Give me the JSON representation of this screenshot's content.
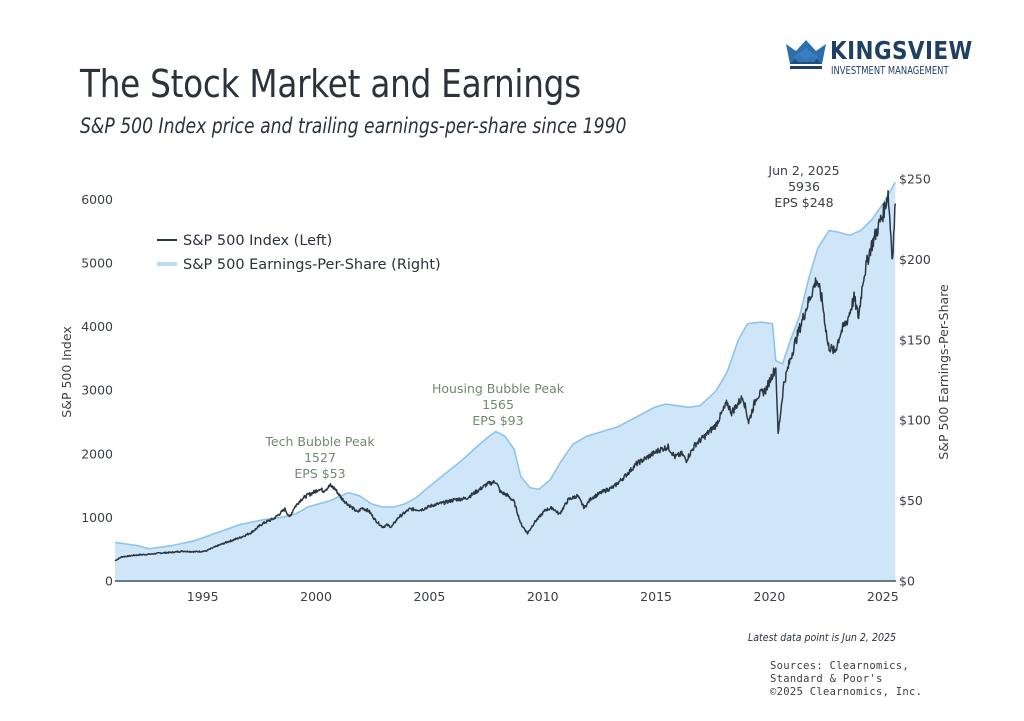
{
  "header": {
    "title": "The Stock Market and Earnings",
    "subtitle": "S&P 500 Index price and trailing earnings-per-share since 1990"
  },
  "brand": {
    "name": "KINGSVIEW",
    "tagline": "INVESTMENT MANAGEMENT",
    "icon": "crown-logo-icon",
    "color": "#1f3f63"
  },
  "footer": {
    "latest": "Latest data point is Jun 2, 2025",
    "sources": [
      "Sources: Clearnomics,",
      "Standard & Poor's",
      "©2025 Clearnomics, Inc."
    ]
  },
  "chart_data": {
    "type": "line",
    "title": "The Stock Market and Earnings",
    "xlabel": "",
    "ylabel": "S&P 500 Index",
    "y2label": "S&P 500 Earnings-Per-Share",
    "xlim": [
      1991,
      2025.45
    ],
    "ylim": [
      0,
      6300
    ],
    "y2lim": [
      0,
      250
    ],
    "grid": false,
    "legend_position": "top-left",
    "x_ticks": [
      "1995",
      "2000",
      "2005",
      "2010",
      "2015",
      "2020",
      "2025"
    ],
    "y_ticks": [
      "0",
      "1000",
      "2000",
      "3000",
      "4000",
      "5000",
      "6000"
    ],
    "y2_ticks": [
      "$0",
      "$50",
      "$100",
      "$150",
      "$200",
      "$250"
    ],
    "colors": {
      "index_line": "#2c3744",
      "eps_fill": "#cfe6f8",
      "eps_line": "#8ec4ec",
      "annotation": "#6f8a6e"
    },
    "series": [
      {
        "name": "S&P 500 Index (Left)",
        "axis": "left",
        "style": "line",
        "x": [
          1991.0,
          1991.3,
          1992.0,
          1992.5,
          1993.0,
          1993.5,
          1994.0,
          1994.5,
          1995.0,
          1995.5,
          1996.0,
          1996.5,
          1997.0,
          1997.5,
          1997.8,
          1998.0,
          1998.5,
          1998.7,
          1998.9,
          1999.2,
          1999.5,
          1999.8,
          2000.0,
          2000.2,
          2000.5,
          2000.7,
          2001.0,
          2001.3,
          2001.7,
          2001.9,
          2002.2,
          2002.5,
          2002.8,
          2003.0,
          2003.2,
          2003.5,
          2004.0,
          2004.5,
          2005.0,
          2005.5,
          2006.0,
          2006.5,
          2007.0,
          2007.4,
          2007.8,
          2008.0,
          2008.3,
          2008.6,
          2008.9,
          2009.2,
          2009.5,
          2010.0,
          2010.3,
          2010.6,
          2011.0,
          2011.4,
          2011.7,
          2012.0,
          2012.5,
          2013.0,
          2013.5,
          2014.0,
          2014.5,
          2015.0,
          2015.4,
          2015.7,
          2016.0,
          2016.2,
          2016.6,
          2017.0,
          2017.5,
          2018.0,
          2018.2,
          2018.7,
          2018.95,
          2019.3,
          2019.7,
          2020.0,
          2020.15,
          2020.25,
          2020.5,
          2020.8,
          2021.0,
          2021.5,
          2021.95,
          2022.2,
          2022.45,
          2022.75,
          2023.0,
          2023.3,
          2023.6,
          2023.8,
          2024.0,
          2024.3,
          2024.6,
          2024.9,
          2025.1,
          2025.3,
          2025.42
        ],
        "values": [
          320,
          380,
          410,
          420,
          440,
          450,
          470,
          460,
          470,
          550,
          620,
          680,
          760,
          900,
          950,
          980,
          1130,
          1000,
          1150,
          1280,
          1350,
          1400,
          1450,
          1420,
          1500,
          1450,
          1300,
          1200,
          1080,
          1150,
          1100,
          950,
          850,
          880,
          850,
          1000,
          1130,
          1120,
          1190,
          1230,
          1280,
          1300,
          1420,
          1520,
          1565,
          1400,
          1350,
          1250,
          900,
          750,
          920,
          1120,
          1150,
          1050,
          1280,
          1340,
          1150,
          1300,
          1400,
          1480,
          1650,
          1840,
          1950,
          2060,
          2110,
          1950,
          2000,
          1900,
          2150,
          2270,
          2450,
          2800,
          2650,
          2900,
          2500,
          2900,
          3000,
          3250,
          3350,
          2300,
          3100,
          3500,
          3750,
          4300,
          4750,
          4400,
          3700,
          3600,
          3900,
          4100,
          4450,
          4150,
          4750,
          5200,
          5500,
          5800,
          6100,
          5050,
          5936
        ]
      },
      {
        "name": "S&P 500 Earnings-Per-Share (Right)",
        "axis": "right",
        "style": "area",
        "x": [
          1991.0,
          1991.5,
          1992.0,
          1992.5,
          1993.5,
          1994.5,
          1995.5,
          1996.5,
          1997.5,
          1998.5,
          1999.0,
          1999.5,
          2000.0,
          2000.5,
          2000.8,
          2001.3,
          2001.8,
          2002.3,
          2002.8,
          2003.3,
          2003.8,
          2004.3,
          2004.8,
          2005.5,
          2006.3,
          2007.0,
          2007.5,
          2007.8,
          2008.2,
          2008.6,
          2008.9,
          2009.3,
          2009.7,
          2010.2,
          2010.7,
          2011.2,
          2011.8,
          2012.5,
          2013.2,
          2014.0,
          2014.8,
          2015.3,
          2015.8,
          2016.3,
          2016.8,
          2017.5,
          2018.0,
          2018.5,
          2018.9,
          2019.5,
          2020.0,
          2020.15,
          2020.45,
          2020.8,
          2021.2,
          2021.6,
          2022.0,
          2022.5,
          2022.9,
          2023.4,
          2023.9,
          2024.4,
          2024.9,
          2025.42
        ],
        "values": [
          24,
          23,
          22,
          20,
          22,
          25,
          30,
          35,
          38,
          40,
          42,
          46,
          48,
          50,
          52,
          55,
          53,
          48,
          46,
          46,
          48,
          52,
          58,
          66,
          75,
          84,
          90,
          93,
          90,
          82,
          65,
          58,
          57,
          63,
          75,
          85,
          90,
          93,
          96,
          102,
          108,
          110,
          109,
          108,
          109,
          118,
          130,
          150,
          160,
          161,
          160,
          137,
          135,
          150,
          165,
          188,
          207,
          218,
          217,
          215,
          218,
          225,
          235,
          248
        ]
      }
    ],
    "annotations": [
      {
        "label": "Tech Bubble Peak",
        "value_label": "1527",
        "eps_label": "EPS $53",
        "x": 2000.6
      },
      {
        "label": "Housing Bubble Peak",
        "value_label": "1565",
        "eps_label": "EPS $93",
        "x": 2007.8
      },
      {
        "label": "Jun 2, 2025",
        "value_label": "5936",
        "eps_label": "EPS $248",
        "x": 2025.42
      }
    ]
  }
}
